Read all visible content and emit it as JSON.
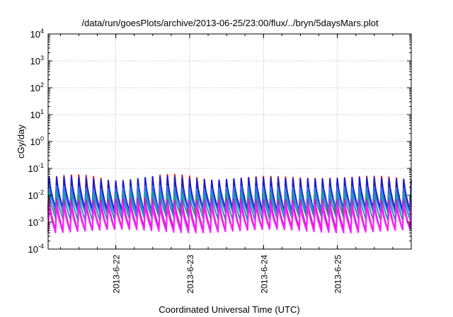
{
  "chart_data": {
    "type": "line",
    "title": "/data/run/goesPlots/archive/2013-06-25/23:00/flux/../bryn/5daysMars.plot",
    "xlabel": "Coordinated Universal Time (UTC)",
    "ylabel": "cGy/day",
    "x_range": [
      "2013-06-21 02:00",
      "2013-06-26 00:00"
    ],
    "ylim": [
      0.0001,
      10000
    ],
    "y_scale": "log",
    "y_ticks": [
      {
        "value": 0.0001,
        "base": "10",
        "exp": "-4"
      },
      {
        "value": 0.001,
        "base": "10",
        "exp": "-3"
      },
      {
        "value": 0.01,
        "base": "10",
        "exp": "-2"
      },
      {
        "value": 0.1,
        "base": "10",
        "exp": "-1"
      },
      {
        "value": 1,
        "base": "10",
        "exp": "0"
      },
      {
        "value": 10,
        "base": "10",
        "exp": "1"
      },
      {
        "value": 100,
        "base": "10",
        "exp": "2"
      },
      {
        "value": 1000,
        "base": "10",
        "exp": "3"
      },
      {
        "value": 10000,
        "base": "10",
        "exp": "4"
      }
    ],
    "x_ticks": [
      "2013-6-22",
      "2013-6-23",
      "2013-6-24",
      "2013-6-25"
    ],
    "x_tick_times": [
      "2013-06-22 00:00",
      "2013-06-23 00:00",
      "2013-06-24 00:00",
      "2013-06-25 00:00"
    ],
    "grid": true,
    "legend": "none",
    "pattern": {
      "description_period_hours": 2.4,
      "profile": "sawtooth"
    },
    "series": [
      {
        "color": "#e8141c",
        "peak": 0.045,
        "trough": 0.0022,
        "peak_variation": 0.35
      },
      {
        "color": "#1c1cd0",
        "peak": 0.042,
        "trough": 0.0028,
        "peak_variation": 0.2
      },
      {
        "color": "#2878f0",
        "peak": 0.02,
        "trough": 0.0024,
        "peak_variation": 0.15
      },
      {
        "color": "#19a0a0",
        "peak": 0.012,
        "trough": 0.0014,
        "peak_variation": 0.1
      },
      {
        "color": "#c81ec8",
        "peak": 0.007,
        "trough": 0.00055,
        "peak_variation": 0.1
      },
      {
        "color": "#ff1cff",
        "peak": 0.0045,
        "trough": 0.00048,
        "peak_variation": 0.1
      }
    ]
  }
}
